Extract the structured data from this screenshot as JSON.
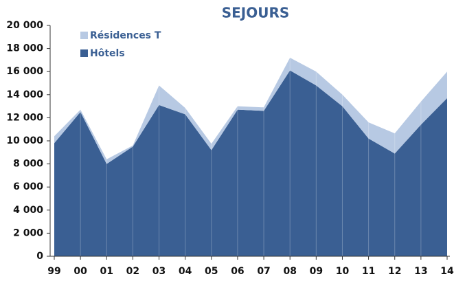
{
  "chart_data": {
    "type": "area",
    "stacked": true,
    "title": "SEJOURS",
    "categories": [
      "99",
      "00",
      "01",
      "02",
      "03",
      "04",
      "05",
      "06",
      "07",
      "08",
      "09",
      "10",
      "11",
      "12",
      "13",
      "14"
    ],
    "series": [
      {
        "name": "Hôtels",
        "color": "#3a5f93",
        "values": [
          9800,
          12500,
          8000,
          9500,
          13100,
          12300,
          9200,
          12700,
          12600,
          16100,
          14800,
          13000,
          10200,
          8900,
          11400,
          13700
        ]
      },
      {
        "name": "Résidences T",
        "color": "#b7c9e3",
        "values": [
          600,
          200,
          400,
          100,
          1700,
          550,
          550,
          300,
          300,
          1100,
          1200,
          1000,
          1400,
          1750,
          2000,
          2300
        ]
      }
    ],
    "ylim": [
      0,
      20000
    ],
    "yticks": [
      0,
      {
        "value": 2000,
        "label": "2 000"
      },
      {
        "value": 4000,
        "label": "4 000"
      },
      {
        "value": 6000,
        "label": "6 000"
      },
      {
        "value": 8000,
        "label": "8 000"
      },
      {
        "value": 10000,
        "label": "10 000"
      },
      {
        "value": 12000,
        "label": "12 000"
      },
      {
        "value": 14000,
        "label": "14 000"
      },
      {
        "value": 16000,
        "label": "16 000"
      },
      {
        "value": 18000,
        "label": "18 000"
      },
      {
        "value": 20000,
        "label": "20 000"
      }
    ],
    "legend": "top-left"
  }
}
